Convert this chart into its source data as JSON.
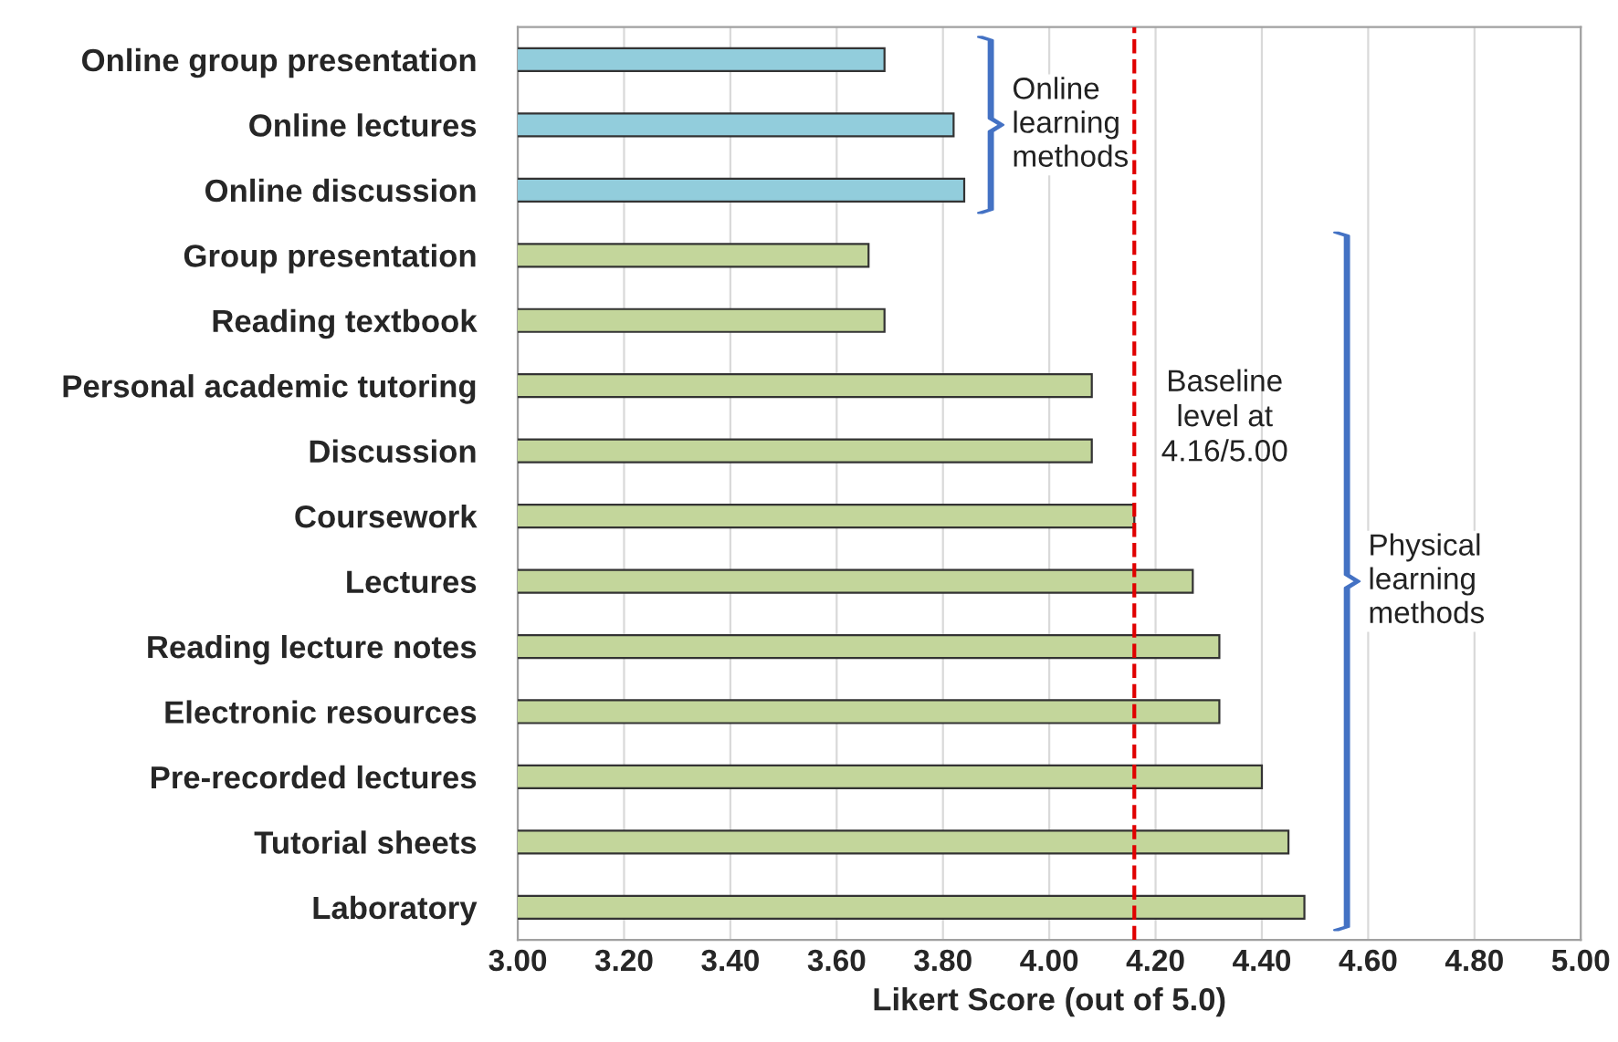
{
  "chart_data": {
    "type": "bar",
    "orientation": "horizontal",
    "xlabel": "Likert Score (out of 5.0)",
    "categories": [
      "Online group presentation",
      "Online lectures",
      "Online discussion",
      "Group presentation",
      "Reading textbook",
      "Personal academic tutoring",
      "Discussion",
      "Coursework",
      "Lectures",
      "Reading lecture notes",
      "Electronic resources",
      "Pre-recorded lectures",
      "Tutorial sheets",
      "Laboratory"
    ],
    "values": [
      3.69,
      3.82,
      3.84,
      3.66,
      3.69,
      4.08,
      4.08,
      4.16,
      4.27,
      4.32,
      4.32,
      4.4,
      4.45,
      4.48
    ],
    "colors": [
      "#92cddc",
      "#92cddc",
      "#92cddc",
      "#c3d69b",
      "#c3d69b",
      "#c3d69b",
      "#c3d69b",
      "#c3d69b",
      "#c3d69b",
      "#c3d69b",
      "#c3d69b",
      "#c3d69b",
      "#c3d69b",
      "#c3d69b"
    ],
    "xlim": [
      3.0,
      5.0
    ],
    "xticks": [
      {
        "value": 3.0,
        "label": "3.00"
      },
      {
        "value": 3.2,
        "label": "3.20"
      },
      {
        "value": 3.4,
        "label": "3.40"
      },
      {
        "value": 3.6,
        "label": "3.60"
      },
      {
        "value": 3.8,
        "label": "3.80"
      },
      {
        "value": 4.0,
        "label": "4.00"
      },
      {
        "value": 4.2,
        "label": "4.20"
      },
      {
        "value": 4.4,
        "label": "4.40"
      },
      {
        "value": 4.6,
        "label": "4.60"
      },
      {
        "value": 4.8,
        "label": "4.80"
      },
      {
        "value": 5.0,
        "label": "5.00"
      }
    ],
    "grid": "x",
    "ref_lines": [
      {
        "axis": "x",
        "value": 4.16,
        "label": "Baseline\nlevel at\n4.16/5.00",
        "color": "#e00000",
        "line_style": "dashed"
      }
    ],
    "annotations": [
      "Online\nlearning\nmethods",
      "Physical\nlearning\nmethods"
    ]
  }
}
